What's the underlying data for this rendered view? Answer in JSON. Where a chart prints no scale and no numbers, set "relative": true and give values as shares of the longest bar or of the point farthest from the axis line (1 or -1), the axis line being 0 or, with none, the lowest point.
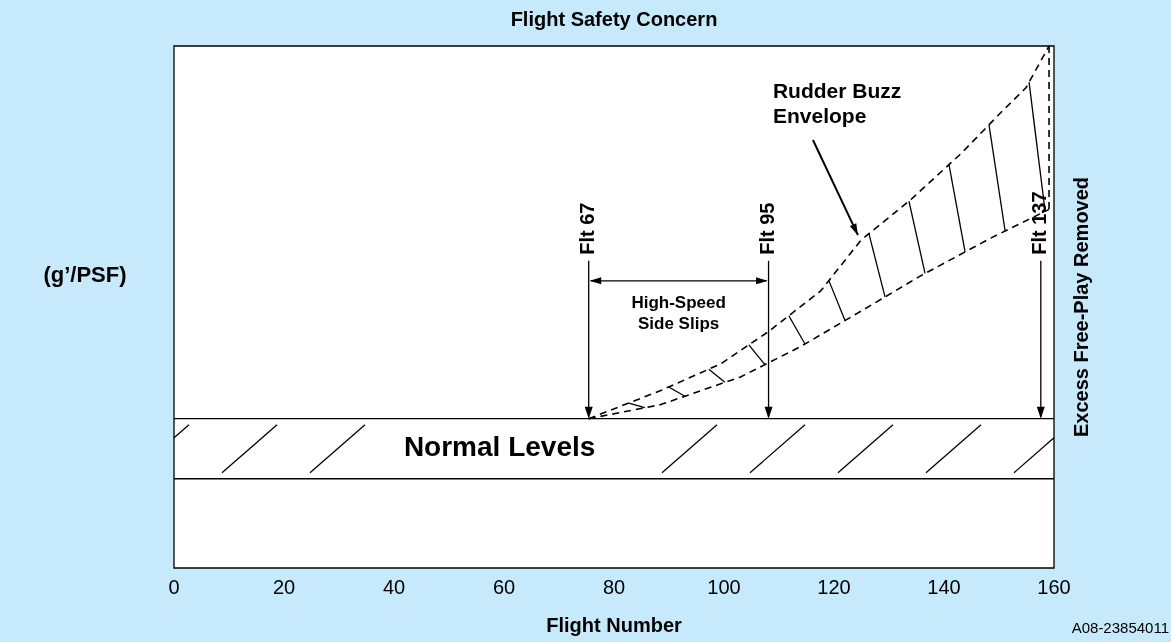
{
  "chart_data": {
    "type": "line",
    "title": "Flight Safety Concern",
    "xlabel": "Flight Number",
    "ylabel": "(g’/PSF)",
    "y2label": "Excess Free-Play Removed",
    "relative": true,
    "xlim": [
      0,
      160
    ],
    "xticks": [
      0,
      20,
      40,
      60,
      80,
      100,
      120,
      140,
      160
    ],
    "marker": "none",
    "line_style": "dashed",
    "legend": false,
    "series": [
      {
        "color": "#000000",
        "x": [
          75.4,
          88.5,
          99.4,
          108.1,
          117.6,
          124.9,
          134.0,
          143.1,
          150.3,
          154.9,
          159.1
        ],
        "values": [
          0.286,
          0.34,
          0.391,
          0.453,
          0.531,
          0.628,
          0.706,
          0.794,
          0.872,
          0.92,
          1.0
        ]
      },
      {
        "color": "#000000",
        "x": [
          75.4,
          88.5,
          103.0,
          113.9,
          124.9,
          135.8,
          148.5,
          159.1
        ],
        "values": [
          0.286,
          0.313,
          0.366,
          0.424,
          0.492,
          0.56,
          0.632,
          0.687
        ]
      }
    ],
    "ref_lines": [
      {
        "axis": "x",
        "value": 75.4,
        "label": "Flt 67"
      },
      {
        "axis": "x",
        "value": 108.1,
        "label": "Flt 95"
      },
      {
        "axis": "x",
        "value": 157.6,
        "label": "Flt 137"
      },
      {
        "axis": "y",
        "value": 0.171
      },
      {
        "axis": "y",
        "value": 0.286
      }
    ],
    "annotations": [
      "High-Speed Side Slips",
      "Rudder Buzz Envelope",
      "Normal Levels",
      "A08-23854011"
    ]
  }
}
